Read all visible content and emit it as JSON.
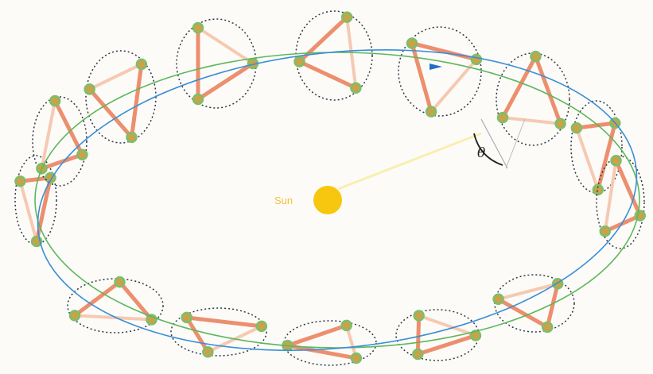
{
  "diagram": {
    "sun_label": "Sun",
    "angle_label": "θ",
    "colors": {
      "background": "#fdfbf8",
      "orbit_blue": "#3a8fd6",
      "orbit_green": "#5cb85c",
      "triangle_edge": "#ec8f6e",
      "triangle_edge_faint": "#f6c9b2",
      "node_fill": "#c9a24a",
      "node_ring": "#7cbf6a",
      "dotted_circle": "#2b3646",
      "sun": "#f7c710",
      "sun_ray": "#f8efb0",
      "arrow": "#1f6fc4"
    },
    "station_count": 20
  }
}
